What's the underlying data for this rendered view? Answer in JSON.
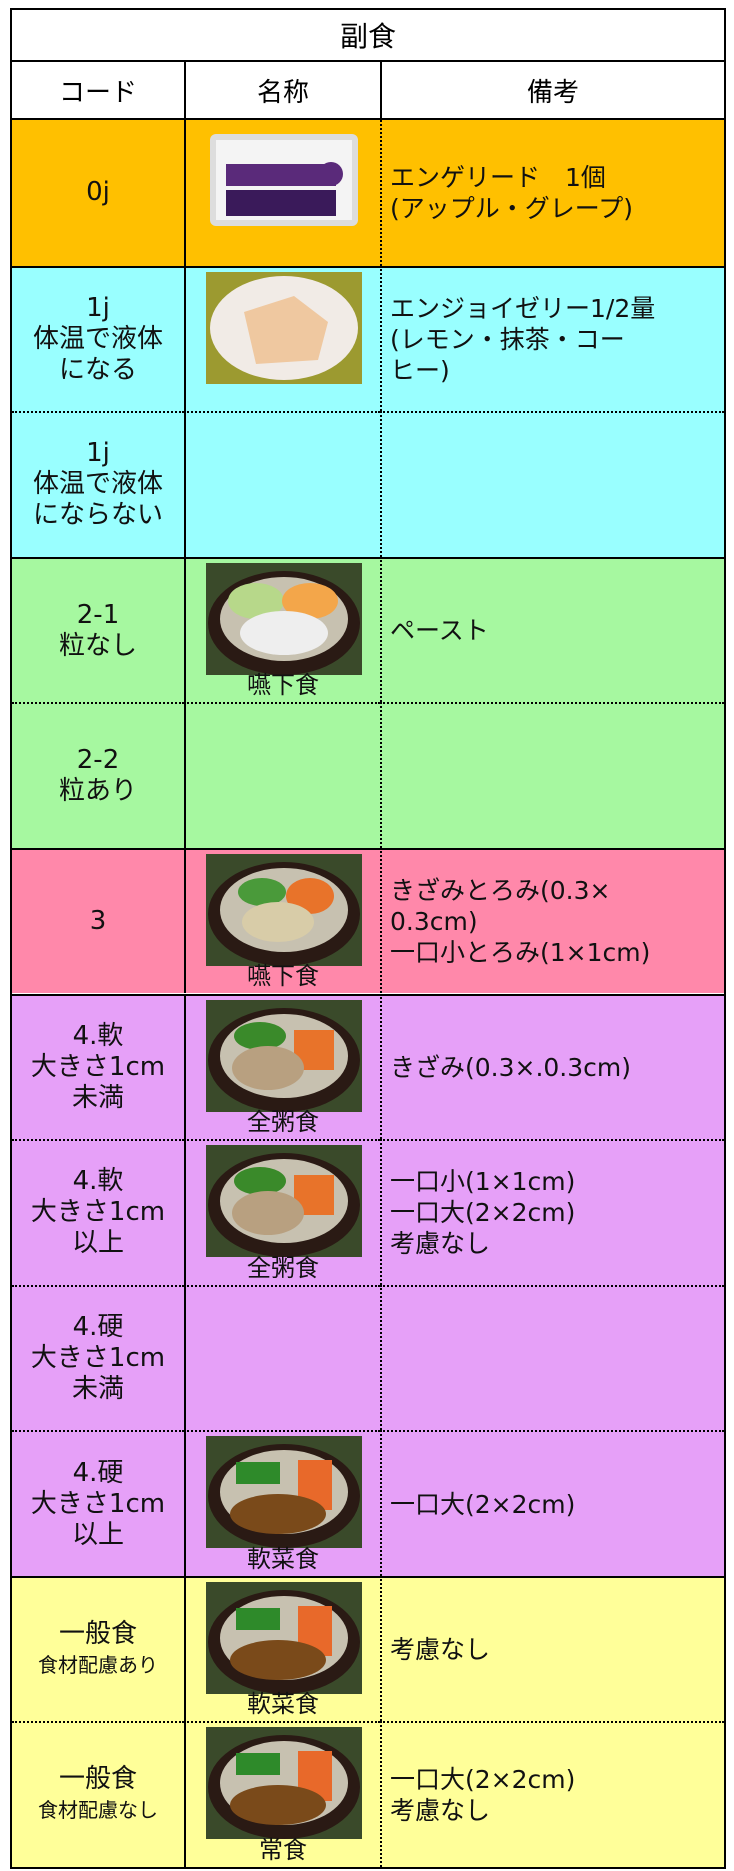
{
  "title": "副食",
  "headers": [
    "コード",
    "名称",
    "備考"
  ],
  "rows": [
    {
      "code": [
        "0j"
      ],
      "caption": null,
      "note": [
        "エンゲリード　1個",
        "(アップル・グレープ)"
      ],
      "color": "#ffc000"
    },
    {
      "code": [
        "1j",
        "体温で液体",
        "になる"
      ],
      "caption": null,
      "note": [
        "エンジョイゼリー1/2量",
        "(レモン・抹茶・コー",
        "ヒー)"
      ],
      "color": "#99ffff"
    },
    {
      "code": [
        "1j",
        "体温で液体",
        "にならない"
      ],
      "caption": null,
      "note": [],
      "color": "#99ffff"
    },
    {
      "code": [
        "2-1",
        "粒なし"
      ],
      "caption": "嚥下食",
      "note": [
        "ペースト"
      ],
      "color": "#a6f8a0"
    },
    {
      "code": [
        "2-2",
        "粒あり"
      ],
      "caption": null,
      "note": [],
      "color": "#a6f8a0"
    },
    {
      "code": [
        "3"
      ],
      "caption": "嚥下食",
      "note": [
        "きざみとろみ(0.3×",
        "0.3cm)",
        "一口小とろみ(1×1cm)"
      ],
      "color": "#ff88aa"
    },
    {
      "code": [
        "4.軟",
        "大きさ1cm",
        "未満"
      ],
      "caption": "全粥食",
      "note": [
        "きざみ(0.3×.0.3cm)"
      ],
      "color": "#e6a0f8"
    },
    {
      "code": [
        "4.軟",
        "大きさ1cm",
        "以上"
      ],
      "caption": "全粥食",
      "note": [
        "一口小(1×1cm)",
        "一口大(2×2cm)",
        "考慮なし"
      ],
      "color": "#e6a0f8"
    },
    {
      "code": [
        "4.硬",
        "大きさ1cm",
        "未満"
      ],
      "caption": null,
      "note": [],
      "color": "#e6a0f8"
    },
    {
      "code": [
        "4.硬",
        "大きさ1cm",
        "以上"
      ],
      "caption": "軟菜食",
      "note": [
        "一口大(2×2cm)"
      ],
      "color": "#e6a0f8"
    },
    {
      "code": [
        "一般食",
        "食材配慮あり"
      ],
      "caption": "軟菜食",
      "note": [
        "考慮なし"
      ],
      "color": "#ffff99"
    },
    {
      "code": [
        "一般食",
        "食材配慮なし"
      ],
      "caption": "常食",
      "note": [
        "一口大(2×2cm)",
        "考慮なし"
      ],
      "color": "#ffff99"
    }
  ]
}
